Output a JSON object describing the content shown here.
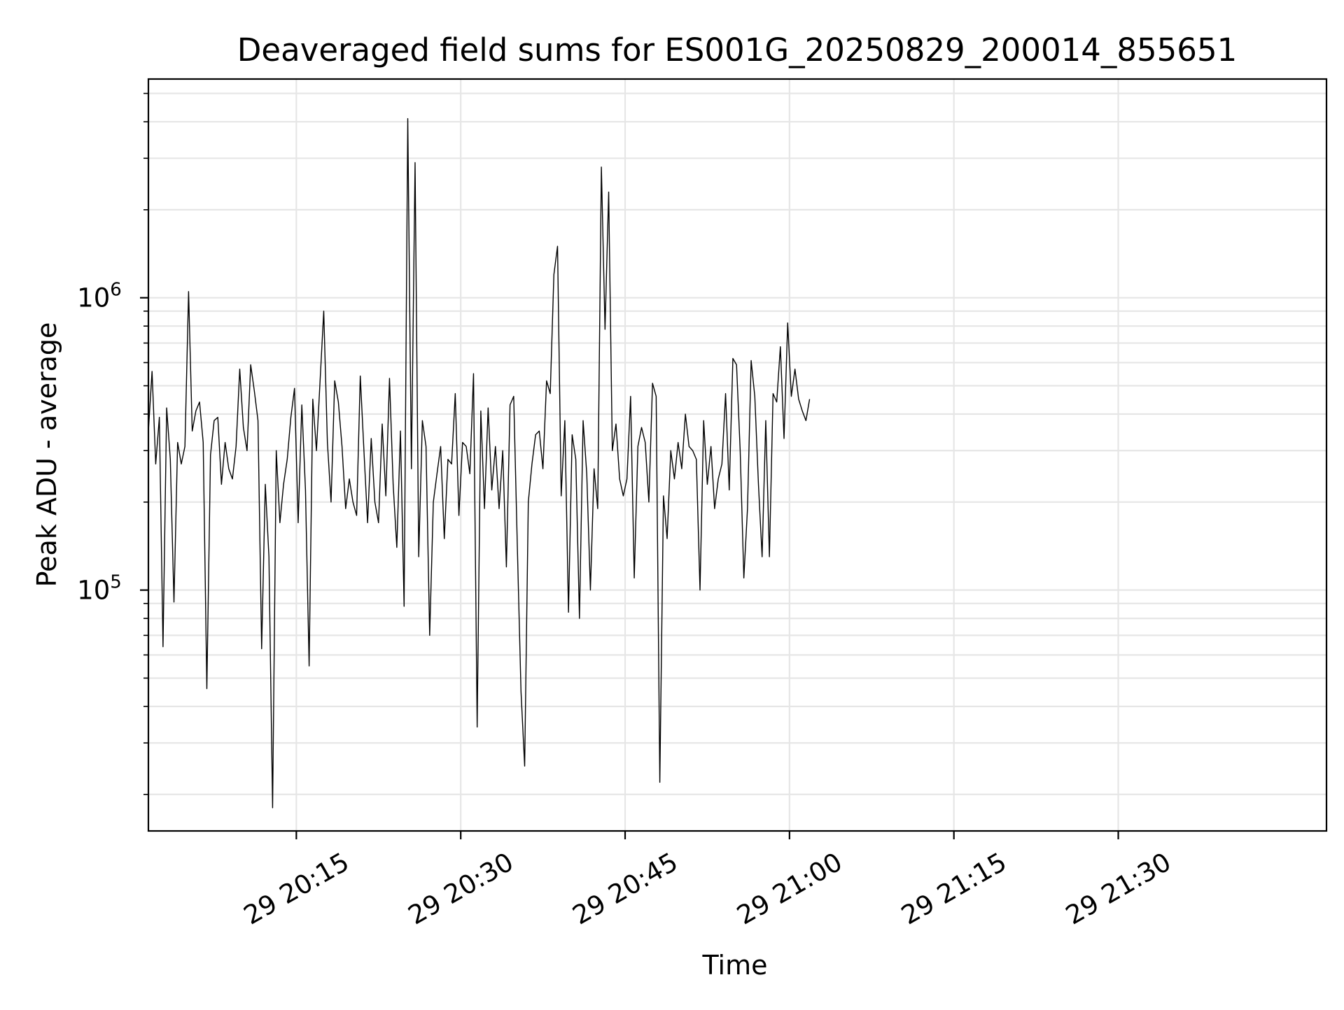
{
  "chart_data": {
    "type": "line",
    "title": "Deaveraged field sums for ES001G_20250829_200014_855651",
    "xlabel": "Time",
    "ylabel": "Peak ADU - average",
    "x_axis": {
      "kind": "time",
      "range_minutes": [
        "20:01:30",
        "21:49:00"
      ],
      "ticks": [
        {
          "label": "29 20:15",
          "value": "20:15"
        },
        {
          "label": "29 20:30",
          "value": "20:30"
        },
        {
          "label": "29 20:45",
          "value": "20:45"
        },
        {
          "label": "29 21:00",
          "value": "21:00"
        },
        {
          "label": "29 21:15",
          "value": "21:15"
        },
        {
          "label": "29 21:30",
          "value": "21:30"
        }
      ]
    },
    "y_axis": {
      "scale": "log",
      "ylim": [
        15000,
        5600000
      ],
      "ticks": [
        {
          "base": "10",
          "exp": "5",
          "value": 100000
        },
        {
          "base": "10",
          "exp": "6",
          "value": 1000000
        }
      ]
    },
    "grid": true,
    "series": [
      {
        "color": "#000000",
        "points": [
          [
            "20:01:30",
            350000
          ],
          [
            "20:01:50",
            560000
          ],
          [
            "20:02:10",
            270000
          ],
          [
            "20:02:30",
            390000
          ],
          [
            "20:02:50",
            64000
          ],
          [
            "20:03:10",
            420000
          ],
          [
            "20:03:30",
            280000
          ],
          [
            "20:03:50",
            91000
          ],
          [
            "20:04:10",
            320000
          ],
          [
            "20:04:30",
            270000
          ],
          [
            "20:04:50",
            310000
          ],
          [
            "20:05:10",
            1050000
          ],
          [
            "20:05:30",
            350000
          ],
          [
            "20:05:50",
            410000
          ],
          [
            "20:06:10",
            440000
          ],
          [
            "20:06:30",
            320000
          ],
          [
            "20:06:50",
            46000
          ],
          [
            "20:07:10",
            290000
          ],
          [
            "20:07:30",
            380000
          ],
          [
            "20:07:50",
            390000
          ],
          [
            "20:08:10",
            230000
          ],
          [
            "20:08:30",
            320000
          ],
          [
            "20:08:50",
            260000
          ],
          [
            "20:09:10",
            240000
          ],
          [
            "20:09:30",
            310000
          ],
          [
            "20:09:50",
            570000
          ],
          [
            "20:10:10",
            360000
          ],
          [
            "20:10:30",
            300000
          ],
          [
            "20:10:50",
            590000
          ],
          [
            "20:11:10",
            480000
          ],
          [
            "20:11:30",
            380000
          ],
          [
            "20:11:50",
            63000
          ],
          [
            "20:12:10",
            230000
          ],
          [
            "20:12:30",
            130000
          ],
          [
            "20:12:50",
            18000
          ],
          [
            "20:13:10",
            300000
          ],
          [
            "20:13:30",
            170000
          ],
          [
            "20:13:50",
            230000
          ],
          [
            "20:14:10",
            280000
          ],
          [
            "20:14:30",
            390000
          ],
          [
            "20:14:50",
            490000
          ],
          [
            "20:15:10",
            170000
          ],
          [
            "20:15:30",
            430000
          ],
          [
            "20:15:50",
            220000
          ],
          [
            "20:16:10",
            55000
          ],
          [
            "20:16:30",
            450000
          ],
          [
            "20:16:50",
            300000
          ],
          [
            "20:17:10",
            520000
          ],
          [
            "20:17:30",
            900000
          ],
          [
            "20:17:50",
            320000
          ],
          [
            "20:18:10",
            200000
          ],
          [
            "20:18:30",
            520000
          ],
          [
            "20:18:50",
            440000
          ],
          [
            "20:19:10",
            310000
          ],
          [
            "20:19:30",
            190000
          ],
          [
            "20:19:50",
            240000
          ],
          [
            "20:20:10",
            200000
          ],
          [
            "20:20:30",
            180000
          ],
          [
            "20:20:50",
            540000
          ],
          [
            "20:21:10",
            300000
          ],
          [
            "20:21:30",
            170000
          ],
          [
            "20:21:50",
            330000
          ],
          [
            "20:22:10",
            200000
          ],
          [
            "20:22:30",
            170000
          ],
          [
            "20:22:50",
            370000
          ],
          [
            "20:23:10",
            210000
          ],
          [
            "20:23:30",
            530000
          ],
          [
            "20:23:50",
            230000
          ],
          [
            "20:24:10",
            140000
          ],
          [
            "20:24:30",
            350000
          ],
          [
            "20:24:50",
            88000
          ],
          [
            "20:25:10",
            4100000
          ],
          [
            "20:25:30",
            260000
          ],
          [
            "20:25:50",
            2900000
          ],
          [
            "20:26:10",
            130000
          ],
          [
            "20:26:30",
            380000
          ],
          [
            "20:26:50",
            310000
          ],
          [
            "20:27:10",
            70000
          ],
          [
            "20:27:30",
            200000
          ],
          [
            "20:27:50",
            250000
          ],
          [
            "20:28:10",
            310000
          ],
          [
            "20:28:30",
            150000
          ],
          [
            "20:28:50",
            280000
          ],
          [
            "20:29:10",
            270000
          ],
          [
            "20:29:30",
            470000
          ],
          [
            "20:29:50",
            180000
          ],
          [
            "20:30:10",
            320000
          ],
          [
            "20:30:30",
            310000
          ],
          [
            "20:30:50",
            250000
          ],
          [
            "20:31:10",
            550000
          ],
          [
            "20:31:30",
            34000
          ],
          [
            "20:31:50",
            410000
          ],
          [
            "20:32:10",
            190000
          ],
          [
            "20:32:30",
            420000
          ],
          [
            "20:32:50",
            220000
          ],
          [
            "20:33:10",
            310000
          ],
          [
            "20:33:30",
            190000
          ],
          [
            "20:33:50",
            300000
          ],
          [
            "20:34:10",
            120000
          ],
          [
            "20:34:30",
            430000
          ],
          [
            "20:34:50",
            460000
          ],
          [
            "20:35:10",
            140000
          ],
          [
            "20:35:30",
            45000
          ],
          [
            "20:35:50",
            25000
          ],
          [
            "20:36:10",
            200000
          ],
          [
            "20:36:30",
            270000
          ],
          [
            "20:36:50",
            340000
          ],
          [
            "20:37:10",
            350000
          ],
          [
            "20:37:30",
            260000
          ],
          [
            "20:37:50",
            520000
          ],
          [
            "20:38:10",
            470000
          ],
          [
            "20:38:30",
            1200000
          ],
          [
            "20:38:50",
            1500000
          ],
          [
            "20:39:10",
            210000
          ],
          [
            "20:39:30",
            380000
          ],
          [
            "20:39:50",
            84000
          ],
          [
            "20:40:10",
            340000
          ],
          [
            "20:40:30",
            280000
          ],
          [
            "20:40:50",
            80000
          ],
          [
            "20:41:10",
            380000
          ],
          [
            "20:41:30",
            250000
          ],
          [
            "20:41:50",
            100000
          ],
          [
            "20:42:10",
            260000
          ],
          [
            "20:42:30",
            190000
          ],
          [
            "20:42:50",
            2800000
          ],
          [
            "20:43:10",
            780000
          ],
          [
            "20:43:30",
            2300000
          ],
          [
            "20:43:50",
            300000
          ],
          [
            "20:44:10",
            370000
          ],
          [
            "20:44:30",
            240000
          ],
          [
            "20:44:50",
            210000
          ],
          [
            "20:45:10",
            240000
          ],
          [
            "20:45:30",
            460000
          ],
          [
            "20:45:50",
            110000
          ],
          [
            "20:46:10",
            310000
          ],
          [
            "20:46:30",
            360000
          ],
          [
            "20:46:50",
            320000
          ],
          [
            "20:47:10",
            200000
          ],
          [
            "20:47:30",
            510000
          ],
          [
            "20:47:50",
            460000
          ],
          [
            "20:48:10",
            22000
          ],
          [
            "20:48:30",
            210000
          ],
          [
            "20:48:50",
            150000
          ],
          [
            "20:49:10",
            300000
          ],
          [
            "20:49:30",
            240000
          ],
          [
            "20:49:50",
            320000
          ],
          [
            "20:50:10",
            260000
          ],
          [
            "20:50:30",
            400000
          ],
          [
            "20:50:50",
            310000
          ],
          [
            "20:51:10",
            300000
          ],
          [
            "20:51:30",
            280000
          ],
          [
            "20:51:50",
            100000
          ],
          [
            "20:52:10",
            380000
          ],
          [
            "20:52:30",
            230000
          ],
          [
            "20:52:50",
            310000
          ],
          [
            "20:53:10",
            190000
          ],
          [
            "20:53:30",
            240000
          ],
          [
            "20:53:50",
            270000
          ],
          [
            "20:54:10",
            470000
          ],
          [
            "20:54:30",
            220000
          ],
          [
            "20:54:50",
            620000
          ],
          [
            "20:55:10",
            590000
          ],
          [
            "20:55:30",
            300000
          ],
          [
            "20:55:50",
            110000
          ],
          [
            "20:56:10",
            190000
          ],
          [
            "20:56:30",
            610000
          ],
          [
            "20:56:50",
            460000
          ],
          [
            "20:57:10",
            230000
          ],
          [
            "20:57:30",
            130000
          ],
          [
            "20:57:50",
            380000
          ],
          [
            "20:58:10",
            130000
          ],
          [
            "20:58:30",
            470000
          ],
          [
            "20:58:50",
            440000
          ],
          [
            "20:59:10",
            680000
          ],
          [
            "20:59:30",
            330000
          ],
          [
            "20:59:50",
            820000
          ],
          [
            "21:00:10",
            460000
          ],
          [
            "21:00:30",
            570000
          ],
          [
            "21:00:50",
            450000
          ],
          [
            "21:01:10",
            410000
          ],
          [
            "21:01:30",
            380000
          ],
          [
            "21:01:50",
            450000
          ]
        ],
        "points_note_excluded": true
      }
    ]
  }
}
